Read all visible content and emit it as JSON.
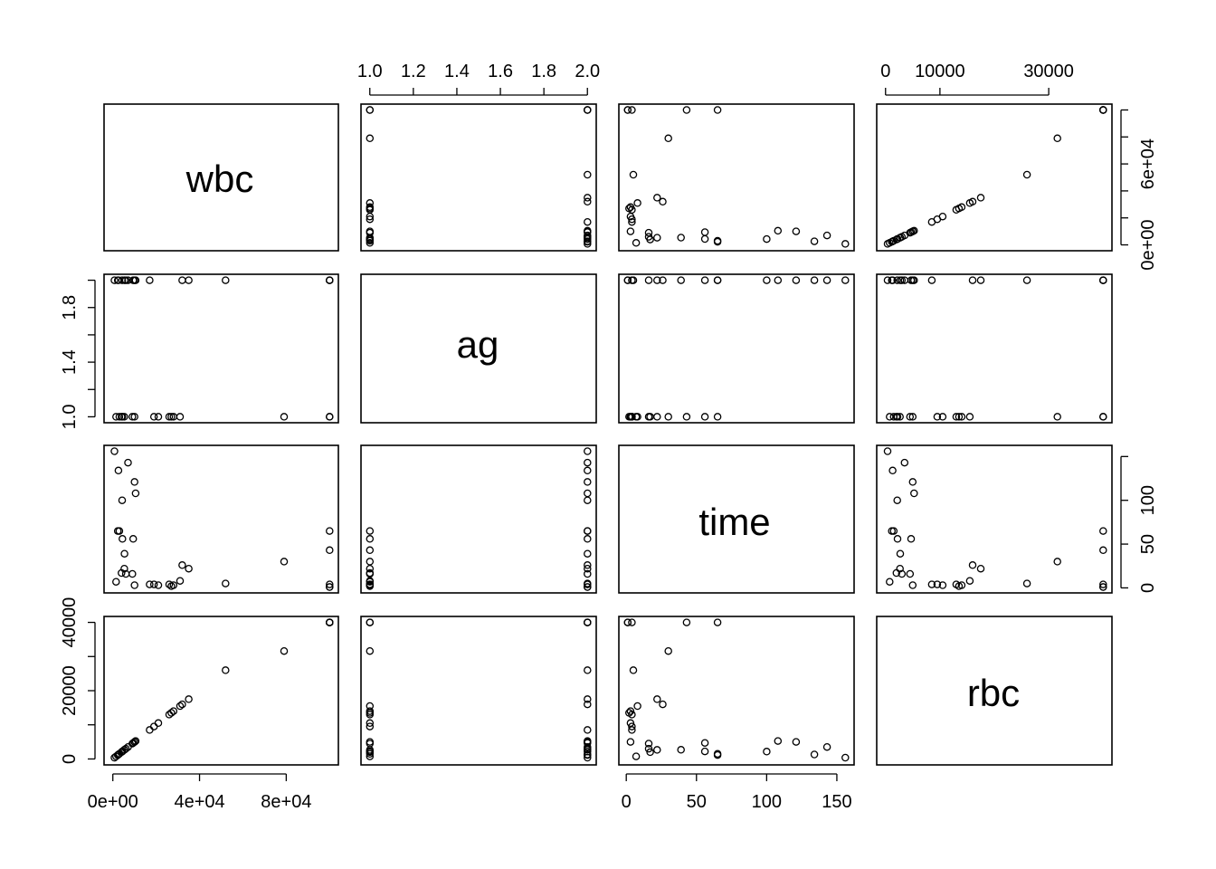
{
  "chart_data": {
    "type": "scatter",
    "kind": "scatterplot-matrix",
    "variables": [
      "wbc",
      "ag",
      "time",
      "rbc"
    ],
    "axes": {
      "wbc": {
        "range": [
          0,
          100000
        ],
        "ticks": [
          0,
          40000,
          80000
        ],
        "tick_labels": [
          "0e+00",
          "4e+04",
          "8e+04"
        ]
      },
      "ag": {
        "range": [
          1,
          2
        ],
        "ticks": [
          1.0,
          1.2,
          1.4,
          1.6,
          1.8,
          2.0
        ],
        "tick_labels": [
          "1.0",
          "1.2",
          "1.4",
          "1.6",
          "1.8",
          "2.0"
        ]
      },
      "time": {
        "range": [
          1,
          156
        ],
        "ticks": [
          0,
          50,
          100,
          150
        ],
        "tick_labels": [
          "0",
          "50",
          "100",
          "150"
        ]
      },
      "rbc": {
        "range": [
          0,
          40000
        ],
        "ticks": [
          0,
          10000,
          30000
        ],
        "tick_labels": [
          "0",
          "10000",
          "30000"
        ]
      },
      "wbc_right": {
        "ticks": [
          0,
          20000,
          40000,
          60000,
          80000,
          100000
        ],
        "tick_labels": [
          "0e+00",
          "",
          "",
          "6e+04",
          "",
          ""
        ]
      },
      "ag_left": {
        "ticks": [
          1.0,
          1.2,
          1.4,
          1.6,
          1.8,
          2.0
        ],
        "tick_labels": [
          "1.0",
          "",
          "1.4",
          "",
          "1.8",
          ""
        ]
      },
      "time_right": {
        "ticks": [
          0,
          50,
          100,
          150
        ],
        "tick_labels": [
          "0",
          "50",
          "100",
          ""
        ]
      },
      "rbc_left": {
        "ticks": [
          0,
          10000,
          20000,
          30000,
          40000
        ],
        "tick_labels": [
          "0",
          "",
          "20000",
          "",
          "40000"
        ]
      }
    },
    "observations": [
      {
        "wbc": 2300,
        "ag": 2,
        "time": 65,
        "rbc": 1150
      },
      {
        "wbc": 750,
        "ag": 2,
        "time": 156,
        "rbc": 375
      },
      {
        "wbc": 4300,
        "ag": 2,
        "time": 100,
        "rbc": 2150
      },
      {
        "wbc": 2600,
        "ag": 2,
        "time": 134,
        "rbc": 1300
      },
      {
        "wbc": 6000,
        "ag": 2,
        "time": 16,
        "rbc": 3000
      },
      {
        "wbc": 10500,
        "ag": 2,
        "time": 108,
        "rbc": 5250
      },
      {
        "wbc": 10000,
        "ag": 2,
        "time": 121,
        "rbc": 5000
      },
      {
        "wbc": 17000,
        "ag": 2,
        "time": 4,
        "rbc": 8500
      },
      {
        "wbc": 5400,
        "ag": 2,
        "time": 39,
        "rbc": 2700
      },
      {
        "wbc": 7000,
        "ag": 2,
        "time": 143,
        "rbc": 3500
      },
      {
        "wbc": 9400,
        "ag": 2,
        "time": 56,
        "rbc": 4700
      },
      {
        "wbc": 32000,
        "ag": 2,
        "time": 26,
        "rbc": 16000
      },
      {
        "wbc": 35000,
        "ag": 2,
        "time": 22,
        "rbc": 17500
      },
      {
        "wbc": 100000,
        "ag": 2,
        "time": 1,
        "rbc": 40000
      },
      {
        "wbc": 100000,
        "ag": 2,
        "time": 1,
        "rbc": 40000
      },
      {
        "wbc": 52000,
        "ag": 2,
        "time": 5,
        "rbc": 26000
      },
      {
        "wbc": 100000,
        "ag": 2,
        "time": 65,
        "rbc": 40000
      },
      {
        "wbc": 4400,
        "ag": 1,
        "time": 56,
        "rbc": 2200
      },
      {
        "wbc": 3000,
        "ag": 1,
        "time": 65,
        "rbc": 1500
      },
      {
        "wbc": 4000,
        "ag": 1,
        "time": 17,
        "rbc": 2000
      },
      {
        "wbc": 1500,
        "ag": 1,
        "time": 7,
        "rbc": 750
      },
      {
        "wbc": 9000,
        "ag": 1,
        "time": 16,
        "rbc": 4500
      },
      {
        "wbc": 5300,
        "ag": 1,
        "time": 22,
        "rbc": 2650
      },
      {
        "wbc": 10000,
        "ag": 1,
        "time": 3,
        "rbc": 5000
      },
      {
        "wbc": 19000,
        "ag": 1,
        "time": 4,
        "rbc": 9500
      },
      {
        "wbc": 27000,
        "ag": 1,
        "time": 2,
        "rbc": 13500
      },
      {
        "wbc": 28000,
        "ag": 1,
        "time": 3,
        "rbc": 14000
      },
      {
        "wbc": 31000,
        "ag": 1,
        "time": 8,
        "rbc": 15500
      },
      {
        "wbc": 26000,
        "ag": 1,
        "time": 4,
        "rbc": 13000
      },
      {
        "wbc": 21000,
        "ag": 1,
        "time": 3,
        "rbc": 10500
      },
      {
        "wbc": 79000,
        "ag": 1,
        "time": 30,
        "rbc": 31600
      },
      {
        "wbc": 100000,
        "ag": 1,
        "time": 4,
        "rbc": 40000
      },
      {
        "wbc": 100000,
        "ag": 1,
        "time": 43,
        "rbc": 40000
      }
    ]
  }
}
